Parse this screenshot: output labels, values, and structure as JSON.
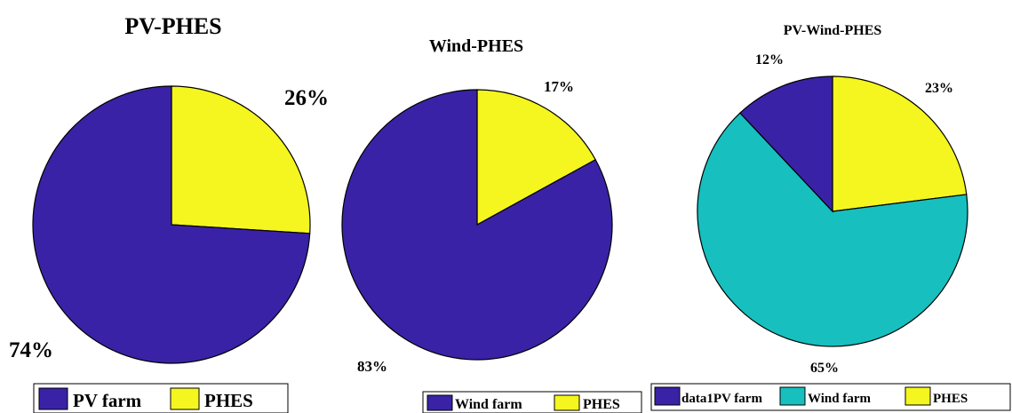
{
  "chart_data": [
    {
      "type": "pie",
      "title": "PV-PHES",
      "series": [
        {
          "name": "PV farm",
          "value": 74,
          "label": "74%",
          "color": "#3a22a6"
        },
        {
          "name": "PHES",
          "value": 26,
          "label": "26%",
          "color": "#f5f51f"
        }
      ],
      "legend": [
        "PV farm",
        "PHES"
      ],
      "legend_placement": "bottom"
    },
    {
      "type": "pie",
      "title": "Wind-PHES",
      "series": [
        {
          "name": "Wind farm",
          "value": 83,
          "label": "83%",
          "color": "#3a22a6"
        },
        {
          "name": "PHES",
          "value": 17,
          "label": "17%",
          "color": "#f5f51f"
        }
      ],
      "legend": [
        "Wind farm",
        "PHES"
      ],
      "legend_placement": "bottom"
    },
    {
      "type": "pie",
      "title": "PV-Wind-PHES",
      "series": [
        {
          "name": "data1PV farm",
          "value": 12,
          "label": "12%",
          "color": "#3a22a6"
        },
        {
          "name": "Wind farm",
          "value": 65,
          "label": "65%",
          "color": "#17bfbf"
        },
        {
          "name": "PHES",
          "value": 23,
          "label": "23%",
          "color": "#f5f51f"
        }
      ],
      "legend": [
        "data1PV farm",
        "Wind farm",
        "PHES"
      ],
      "legend_placement": "bottom"
    }
  ]
}
